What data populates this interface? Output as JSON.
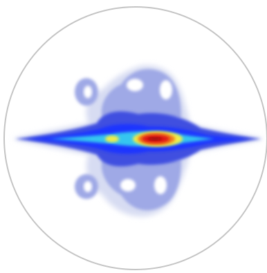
{
  "image": {
    "subject": "intensity-map",
    "colors": {
      "background": "#ffffff",
      "frame": "#c4c4c4",
      "halo": "#d7dcf2",
      "outer": "#9fa9e6",
      "mid": "#3f4fe0",
      "deep": "#1e34ff",
      "cyan": "#36c6f0",
      "yellow": "#f2ee4a",
      "orange": "#f07a1c",
      "red": "#e01212",
      "core": "#9a0808"
    }
  }
}
